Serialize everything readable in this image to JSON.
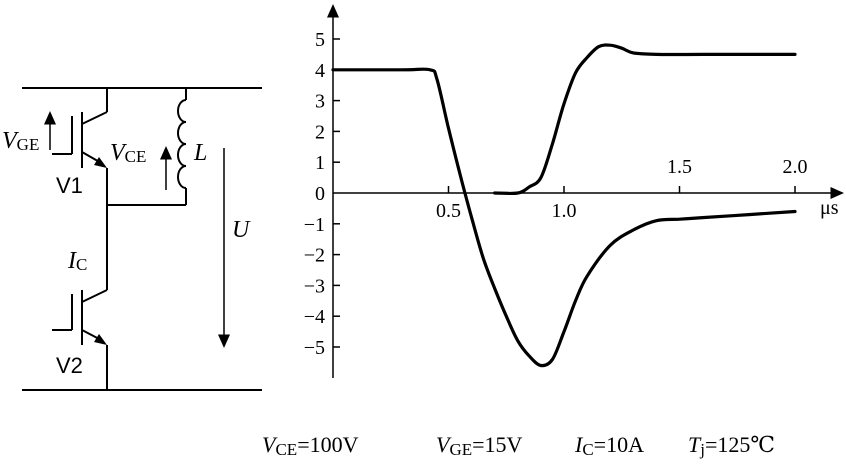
{
  "circuit": {
    "vge": {
      "main": "V",
      "sub": "GE"
    },
    "vce": {
      "main": "V",
      "sub": "CE"
    },
    "inductor": "L",
    "v1": "V1",
    "v2": "V2",
    "ic": {
      "main": "I",
      "sub": "C"
    },
    "u": "U"
  },
  "chart_data": {
    "type": "line",
    "x_unit": "μs",
    "xlim": [
      0,
      2.1
    ],
    "ylim": [
      -5.8,
      6.2
    ],
    "x_ticks": [
      0.5,
      1.0,
      1.5,
      2.0
    ],
    "x_tick_labels": [
      "0.5",
      "1.0",
      "1.5",
      "2.0"
    ],
    "y_ticks": [
      5,
      4,
      3,
      2,
      1,
      0,
      -1,
      -2,
      -3,
      -4,
      -5
    ],
    "y_tick_labels": [
      "5",
      "4",
      "3",
      "2",
      "1",
      "0",
      "−1",
      "−2",
      "−3",
      "−4",
      "−5"
    ],
    "series": [
      {
        "x": [
          0,
          0.3,
          0.42,
          0.45,
          0.5,
          0.55,
          0.6,
          0.65,
          0.7,
          0.75,
          0.8,
          0.85,
          0.9,
          0.95,
          1.0,
          1.05,
          1.1,
          1.2,
          1.3,
          1.4,
          1.5,
          1.6,
          1.8,
          2.0
        ],
        "y": [
          4.0,
          4.0,
          4.0,
          3.7,
          2.1,
          0.6,
          -0.8,
          -2.1,
          -3.1,
          -4.0,
          -4.8,
          -5.3,
          -5.6,
          -5.4,
          -4.5,
          -3.5,
          -2.7,
          -1.7,
          -1.2,
          -0.9,
          -0.85,
          -0.8,
          -0.7,
          -0.6
        ]
      },
      {
        "x": [
          0.7,
          0.8,
          0.85,
          0.9,
          0.95,
          1.0,
          1.05,
          1.1,
          1.15,
          1.2,
          1.25,
          1.3,
          1.4,
          1.6,
          1.8,
          2.0
        ],
        "y": [
          0.0,
          0.0,
          0.2,
          0.5,
          1.6,
          2.9,
          3.9,
          4.4,
          4.75,
          4.8,
          4.7,
          4.55,
          4.5,
          4.5,
          4.5,
          4.5
        ]
      }
    ]
  },
  "conditions": {
    "vce": {
      "main": "V",
      "sub": "CE",
      "rest": "=100V"
    },
    "vge": {
      "main": "V",
      "sub": "GE",
      "rest": "=15V"
    },
    "ic": {
      "main": "I",
      "sub": "C",
      "rest": "=10A"
    },
    "tj": {
      "main": "T",
      "sub": "j",
      "rest": "=125℃"
    }
  }
}
